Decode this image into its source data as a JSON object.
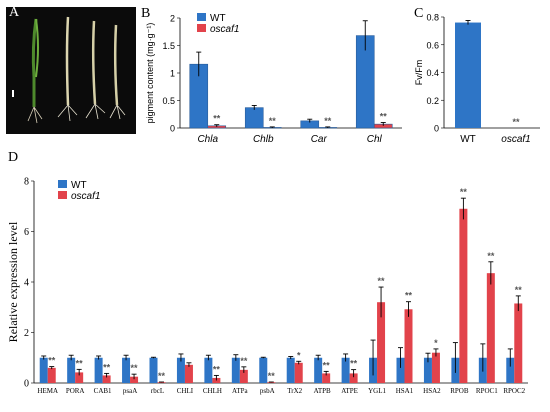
{
  "panel_labels": {
    "a": "A",
    "b": "B",
    "c": "C",
    "d": "D"
  },
  "colors": {
    "wt": "#2e75c6",
    "mutant": "#e2434b",
    "error": "#000000",
    "significance": "#555555"
  },
  "chart_data": [
    {
      "id": "B",
      "type": "bar",
      "ylabel": "pigment content (mg·g⁻¹)",
      "ylim": [
        0,
        2
      ],
      "yticks": [
        "0",
        "0.5",
        "1",
        "1.5",
        "2"
      ],
      "categories": [
        "Chla",
        "Chlb",
        "Car",
        "Chl"
      ],
      "series": [
        {
          "name": "WT",
          "values": [
            1.16,
            0.37,
            0.13,
            1.68
          ],
          "errors": [
            0.22,
            0.04,
            0.03,
            0.27
          ],
          "marks": [
            "",
            "",
            "",
            ""
          ]
        },
        {
          "name": "oscaf1",
          "values": [
            0.04,
            0.01,
            0.01,
            0.07
          ],
          "errors": [
            0.02,
            0.01,
            0.01,
            0.03
          ],
          "marks": [
            "**",
            "**",
            "**",
            "**"
          ]
        }
      ],
      "legend": "top-left"
    },
    {
      "id": "C",
      "type": "bar",
      "ylabel": "Fv/Fm",
      "ylim": [
        0,
        0.8
      ],
      "yticks": [
        "0",
        "0.2",
        "0.4",
        "0.6",
        "0.8"
      ],
      "categories": [
        "WT",
        "oscaf1"
      ],
      "series": [
        {
          "name": "WT",
          "values": [
            0.76,
            0.0
          ],
          "errors": [
            0.015,
            0
          ],
          "marks": [
            "",
            "**"
          ]
        }
      ]
    },
    {
      "id": "D",
      "type": "bar",
      "ylabel": "Relative expression level",
      "ylim": [
        0,
        8
      ],
      "yticks": [
        "0",
        "2",
        "4",
        "6",
        "8"
      ],
      "categories": [
        "HEMA",
        "PORA",
        "CAB1",
        "psaA",
        "rbcL",
        "CHLI",
        "CHLH",
        "ATPa",
        "psbA",
        "TrX2",
        "ATPB",
        "ATPE",
        "YGL1",
        "HSA1",
        "HSA2",
        "RPOB",
        "RPOC1",
        "RPOC2"
      ],
      "series": [
        {
          "name": "WT",
          "values": [
            1,
            1,
            1,
            1,
            1,
            1,
            1,
            1,
            1,
            1,
            1,
            1,
            1,
            1,
            1,
            1,
            1,
            1
          ],
          "errors": [
            0.07,
            0.1,
            0.07,
            0.1,
            0.02,
            0.15,
            0.1,
            0.12,
            0.02,
            0.05,
            0.1,
            0.15,
            0.7,
            0.4,
            0.18,
            0.6,
            0.55,
            0.35
          ]
        },
        {
          "name": "oscaf1",
          "values": [
            0.6,
            0.42,
            0.3,
            0.25,
            0.03,
            0.72,
            0.2,
            0.52,
            0.03,
            0.8,
            0.38,
            0.38,
            3.2,
            2.92,
            1.2,
            6.9,
            4.35,
            3.15
          ],
          "errors": [
            0.05,
            0.12,
            0.08,
            0.1,
            0.01,
            0.08,
            0.1,
            0.12,
            0.01,
            0.06,
            0.08,
            0.15,
            0.6,
            0.3,
            0.15,
            0.42,
            0.45,
            0.3
          ],
          "marks": [
            "**",
            "**",
            "**",
            "**",
            "**",
            "",
            "**",
            "**",
            "**",
            "*",
            "**",
            "**",
            "**",
            "**",
            "*",
            "**",
            "**",
            "**"
          ]
        }
      ],
      "legend": "top-left"
    }
  ]
}
